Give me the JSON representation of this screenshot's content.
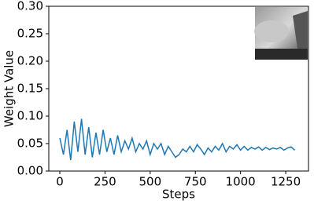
{
  "chart_data": {
    "type": "line",
    "x_label": "Steps",
    "y_label": "Weight Value",
    "x": [
      0,
      20,
      40,
      60,
      80,
      100,
      120,
      140,
      160,
      180,
      200,
      220,
      240,
      260,
      280,
      300,
      320,
      340,
      360,
      380,
      400,
      420,
      440,
      460,
      480,
      500,
      520,
      540,
      560,
      580,
      600,
      620,
      640,
      660,
      680,
      700,
      720,
      740,
      760,
      780,
      800,
      820,
      840,
      860,
      880,
      900,
      920,
      940,
      960,
      980,
      1000,
      1020,
      1040,
      1060,
      1080,
      1100,
      1120,
      1140,
      1160,
      1180,
      1200,
      1220,
      1240,
      1260,
      1280,
      1300
    ],
    "series": [
      {
        "color": "#1f77b4",
        "values": [
          0.06,
          0.03,
          0.075,
          0.02,
          0.09,
          0.035,
          0.095,
          0.03,
          0.08,
          0.025,
          0.07,
          0.03,
          0.075,
          0.035,
          0.06,
          0.03,
          0.065,
          0.035,
          0.055,
          0.04,
          0.06,
          0.035,
          0.05,
          0.04,
          0.055,
          0.03,
          0.05,
          0.04,
          0.05,
          0.03,
          0.045,
          0.035,
          0.025,
          0.03,
          0.04,
          0.035,
          0.045,
          0.035,
          0.048,
          0.04,
          0.03,
          0.042,
          0.035,
          0.045,
          0.038,
          0.05,
          0.035,
          0.045,
          0.04,
          0.048,
          0.038,
          0.045,
          0.038,
          0.043,
          0.04,
          0.044,
          0.038,
          0.043,
          0.039,
          0.042,
          0.04,
          0.043,
          0.038,
          0.042,
          0.044,
          0.038
        ]
      }
    ],
    "xlim": [
      -61,
      1376
    ],
    "xticks": [
      0,
      250,
      500,
      750,
      1000,
      1250
    ],
    "ylim": [
      0,
      0.3
    ],
    "yticks": [
      {
        "value": 0,
        "label": "0.00"
      },
      {
        "value": 0.05,
        "label": "0.05"
      },
      {
        "value": 0.1,
        "label": "0.10"
      },
      {
        "value": 0.15,
        "label": "0.15"
      },
      {
        "value": 0.2,
        "label": "0.20"
      },
      {
        "value": 0.25,
        "label": "0.25"
      },
      {
        "value": 0.3,
        "label": "0.30"
      }
    ],
    "grid": false
  }
}
